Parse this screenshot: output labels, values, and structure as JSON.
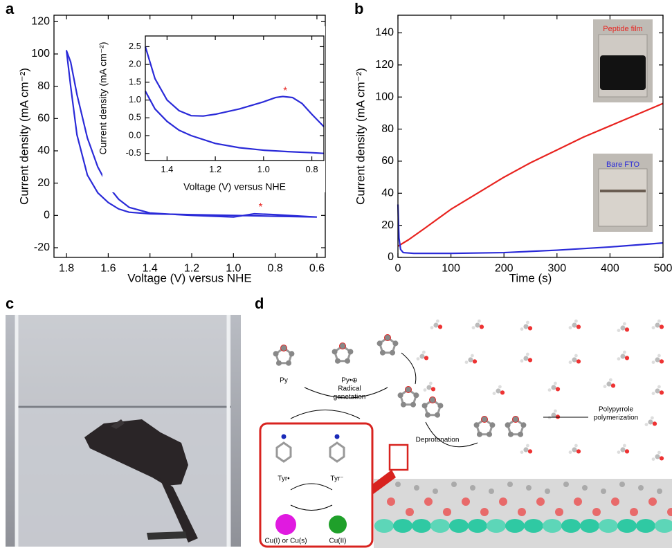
{
  "panel_labels": [
    "a",
    "b",
    "c",
    "d"
  ],
  "chart_data": [
    {
      "type": "line",
      "xlabel": "Voltage (V) versus NHE",
      "ylabel": "Current density (mA cm⁻²)",
      "xlim": [
        1.86,
        0.56
      ],
      "ylim": [
        -26,
        124
      ],
      "xticks": [
        1.8,
        1.6,
        1.4,
        1.2,
        {
          "value": 1.0,
          "label": "1.0"
        },
        0.8,
        0.6
      ],
      "yticks": [
        -20,
        0,
        20,
        40,
        60,
        80,
        100,
        120
      ],
      "series": [
        {
          "color": "#2a2ad8",
          "x": [
            0.6,
            0.8,
            1.0,
            1.2,
            1.4,
            1.5,
            1.55,
            1.6,
            1.65,
            1.7,
            1.75,
            1.78,
            1.8,
            1.78,
            1.75,
            1.7,
            1.65,
            1.6,
            1.55,
            1.5,
            1.4,
            1.2,
            1.0,
            0.9,
            0.8,
            0.6
          ],
          "values": [
            -1,
            -0.5,
            0,
            0.5,
            1,
            2,
            4,
            8,
            14,
            25,
            50,
            80,
            102,
            95,
            75,
            48,
            30,
            18,
            10,
            5,
            1.5,
            0,
            -1,
            1,
            0.5,
            -1
          ]
        }
      ],
      "annotations": [
        {
          "text": "*",
          "x": 0.87,
          "y": 5,
          "color": "#e8231f"
        }
      ]
    },
    {
      "type": "line",
      "xlabel": "Voltage (V) versus NHE",
      "ylabel": "Current density (mA cm⁻²)",
      "xlim": [
        1.49,
        0.75
      ],
      "ylim": [
        -0.7,
        2.8
      ],
      "xticks": [
        1.4,
        1.2,
        {
          "value": 1.0,
          "label": "1.0"
        },
        0.8
      ],
      "yticks": [
        -0.5,
        {
          "value": 0,
          "label": "0.0"
        },
        0.5,
        {
          "value": 1.0,
          "label": "1.0"
        },
        1.5,
        {
          "value": 2.0,
          "label": "2.0"
        },
        2.5
      ],
      "series": [
        {
          "color": "#2a2ad8",
          "x": [
            1.49,
            1.45,
            1.4,
            1.35,
            1.3,
            1.25,
            1.2,
            1.1,
            1.0,
            0.95,
            0.92,
            0.88,
            0.84,
            0.8,
            0.75
          ],
          "values": [
            2.5,
            1.6,
            1.0,
            0.7,
            0.56,
            0.55,
            0.6,
            0.75,
            0.95,
            1.07,
            1.1,
            1.07,
            0.9,
            0.6,
            0.25
          ]
        },
        {
          "color": "#2a2ad8",
          "x": [
            1.49,
            1.45,
            1.4,
            1.35,
            1.3,
            1.2,
            1.1,
            1.0,
            0.9,
            0.8,
            0.75
          ],
          "values": [
            1.25,
            0.75,
            0.4,
            0.15,
            0.0,
            -0.22,
            -0.34,
            -0.41,
            -0.45,
            -0.48,
            -0.5
          ]
        }
      ],
      "annotations": [
        {
          "text": "*",
          "x": 0.91,
          "y": 1.25,
          "color": "#e8231f"
        }
      ]
    },
    {
      "type": "line",
      "xlabel": "Time (s)",
      "ylabel": "Current density (mA cm⁻²)",
      "xlim": [
        0,
        500
      ],
      "ylim": [
        0,
        151
      ],
      "xticks": [
        0,
        100,
        200,
        300,
        400,
        500
      ],
      "yticks": [
        0,
        20,
        40,
        60,
        80,
        100,
        120,
        140
      ],
      "series": [
        {
          "name": "Peptide film",
          "color": "#e8231f",
          "x": [
            0,
            20,
            50,
            100,
            150,
            200,
            250,
            300,
            350,
            400,
            450,
            500
          ],
          "values": [
            7,
            11,
            18,
            30,
            40,
            50,
            59,
            67,
            75,
            82,
            89,
            96
          ]
        },
        {
          "name": "Bare FTO",
          "color": "#2a2ad8",
          "x": [
            0,
            2,
            5,
            10,
            30,
            50,
            100,
            200,
            300,
            400,
            500
          ],
          "values": [
            33,
            12,
            5,
            3,
            2.5,
            2.5,
            2.5,
            3,
            4.5,
            6.5,
            9
          ]
        }
      ]
    }
  ],
  "diagram": {
    "py": "Py",
    "radical": [
      "Radical",
      "genetation"
    ],
    "py_radical": "Py•⊕",
    "deprotonation": "Deprotonation",
    "polymerization": [
      "Polypyrrole",
      "polymerization"
    ],
    "tyr_radical": "Tyr•",
    "tyr_anion": "Tyr⁻",
    "cu_reduced": "Cu(I) or Cu(s)",
    "cu_oxidized": "Cu(II)"
  }
}
